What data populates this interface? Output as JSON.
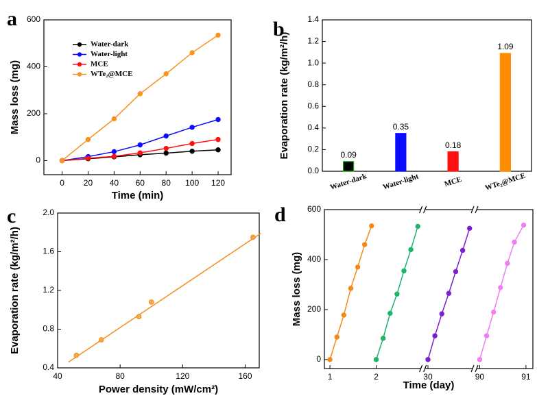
{
  "chart_data": [
    {
      "type": "line",
      "panel_label": "a",
      "xlabel": "Time (min)",
      "ylabel": "Mass loss (mg)",
      "x": [
        0,
        20,
        40,
        60,
        80,
        100,
        120
      ],
      "series": [
        {
          "name": "Water-dark",
          "color": "#000000",
          "values": [
            0,
            8,
            16,
            25,
            32,
            40,
            46
          ]
        },
        {
          "name": "Water-light",
          "color": "#0a0aff",
          "values": [
            0,
            17,
            38,
            67,
            105,
            142,
            175
          ]
        },
        {
          "name": "MCE",
          "color": "#ff1010",
          "values": [
            0,
            10,
            18,
            33,
            52,
            73,
            90
          ]
        },
        {
          "name": "WTe₂@MCE",
          "color": "#f7931e",
          "values": [
            0,
            90,
            178,
            285,
            370,
            460,
            535
          ]
        }
      ],
      "xlim": [
        -14,
        130
      ],
      "xticks": [
        0,
        20,
        40,
        60,
        80,
        100,
        120
      ],
      "ylim": [
        -60,
        600
      ],
      "yticks": [
        0,
        200,
        400,
        600
      ],
      "legend": "upper left"
    },
    {
      "type": "bar",
      "panel_label": "b",
      "ylabel": "Evaporation rate (kg/m²/h)",
      "categories": [
        "Water-dark",
        "Water-light",
        "MCE",
        "WTe₂@MCE"
      ],
      "values": [
        0.09,
        0.35,
        0.18,
        1.09
      ],
      "colors": [
        "#000000",
        "#0a0aff",
        "#ff1010",
        "#ff8c00"
      ],
      "edgecolors": [
        "#00b000",
        "#0a0aff",
        "#ff1010",
        "#ff8c00"
      ],
      "ylim": [
        0,
        1.4
      ],
      "yticks": [
        {
          "value": 0,
          "label": "0.0"
        },
        0.2,
        0.4,
        0.6,
        0.8,
        {
          "value": 1,
          "label": "1.0"
        },
        1.2,
        1.4
      ]
    },
    {
      "type": "scatter",
      "panel_label": "c",
      "xlabel": "Power density (mW/cm²)",
      "ylabel": "Evaporation rate (kg/m²/h)",
      "x": [
        52,
        68,
        92,
        100,
        165
      ],
      "values": [
        0.53,
        0.69,
        0.93,
        1.08,
        1.75
      ],
      "color": "#f5a742",
      "fit": {
        "x": [
          47,
          170
        ],
        "y": [
          0.46,
          1.79
        ],
        "color": "#f28c1e"
      },
      "xlim": [
        40,
        169
      ],
      "xticks": [
        40,
        80,
        120,
        160
      ],
      "ylim": [
        0.4,
        2.0
      ],
      "yticks": [
        0.4,
        0.8,
        1.2,
        1.6,
        {
          "value": 2,
          "label": "2.0"
        }
      ]
    },
    {
      "type": "line",
      "panel_label": "d",
      "xlabel": "Time (day)",
      "ylabel": "Mass loss (mg)",
      "xpieces": [
        [
          0.88,
          2.95
        ],
        [
          29.95,
          30.95
        ],
        [
          89.95,
          91.15
        ]
      ],
      "series": [
        {
          "color": "#f08a14",
          "x": [
            1,
            1.15,
            1.3,
            1.45,
            1.6,
            1.75,
            1.9
          ],
          "values": [
            0,
            90,
            178,
            285,
            370,
            460,
            535
          ]
        },
        {
          "color": "#1db36b",
          "x": [
            2,
            2.15,
            2.3,
            2.45,
            2.6,
            2.75,
            2.9
          ],
          "values": [
            0,
            85,
            185,
            262,
            355,
            440,
            533
          ]
        },
        {
          "color": "#7b1fd0",
          "x": [
            30,
            30.15,
            30.3,
            30.45,
            30.6,
            30.75,
            30.9
          ],
          "values": [
            0,
            95,
            183,
            265,
            352,
            437,
            525
          ]
        },
        {
          "color": "#f07ef0",
          "x": [
            90,
            90.15,
            90.3,
            90.45,
            90.6,
            90.75,
            90.95
          ],
          "values": [
            0,
            95,
            190,
            288,
            385,
            470,
            538
          ]
        }
      ],
      "xticks": [
        1,
        2,
        30,
        90,
        91
      ],
      "ylim": [
        -36,
        600
      ],
      "yticks": [
        0,
        200,
        400,
        600
      ]
    }
  ]
}
